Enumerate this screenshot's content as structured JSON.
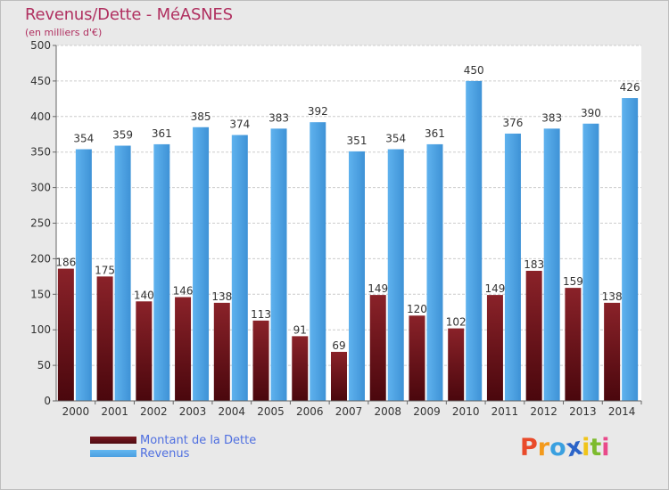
{
  "title": "Revenus/Dette - MéASNES",
  "subtitle": "(en milliers d'€)",
  "colors": {
    "debt": "#7a1a22",
    "debt_dark": "#4e0a10",
    "revenue": "#4a9ee0",
    "revenue_light": "#62b6f0",
    "title": "#b03060",
    "legend_text": "#4f6fe0"
  },
  "legend": {
    "debt_label": "Montant de la Dette",
    "revenue_label": "Revenus"
  },
  "logo": {
    "letters": [
      "P",
      "r",
      "o",
      "x",
      "i",
      "t",
      "i"
    ],
    "colors": [
      "#e94a2a",
      "#f39a1c",
      "#3aa0e0",
      "#2b64c8",
      "#f0c419",
      "#7dbb2e",
      "#e94a8a"
    ]
  },
  "chart_data": {
    "type": "bar",
    "categories": [
      "2000",
      "2001",
      "2002",
      "2003",
      "2004",
      "2005",
      "2006",
      "2007",
      "2008",
      "2009",
      "2010",
      "2011",
      "2012",
      "2013",
      "2014"
    ],
    "series": [
      {
        "name": "Montant de la Dette",
        "values": [
          186,
          175,
          140,
          146,
          138,
          113,
          91,
          69,
          149,
          120,
          102,
          149,
          183,
          159,
          138
        ]
      },
      {
        "name": "Revenus",
        "values": [
          354,
          359,
          361,
          385,
          374,
          383,
          392,
          351,
          354,
          361,
          450,
          376,
          383,
          390,
          426
        ]
      }
    ],
    "ylim": [
      0,
      500
    ],
    "yticks": [
      0,
      50,
      100,
      150,
      200,
      250,
      300,
      350,
      400,
      450,
      500
    ],
    "grid": true,
    "legend_position": "bottom-left"
  }
}
